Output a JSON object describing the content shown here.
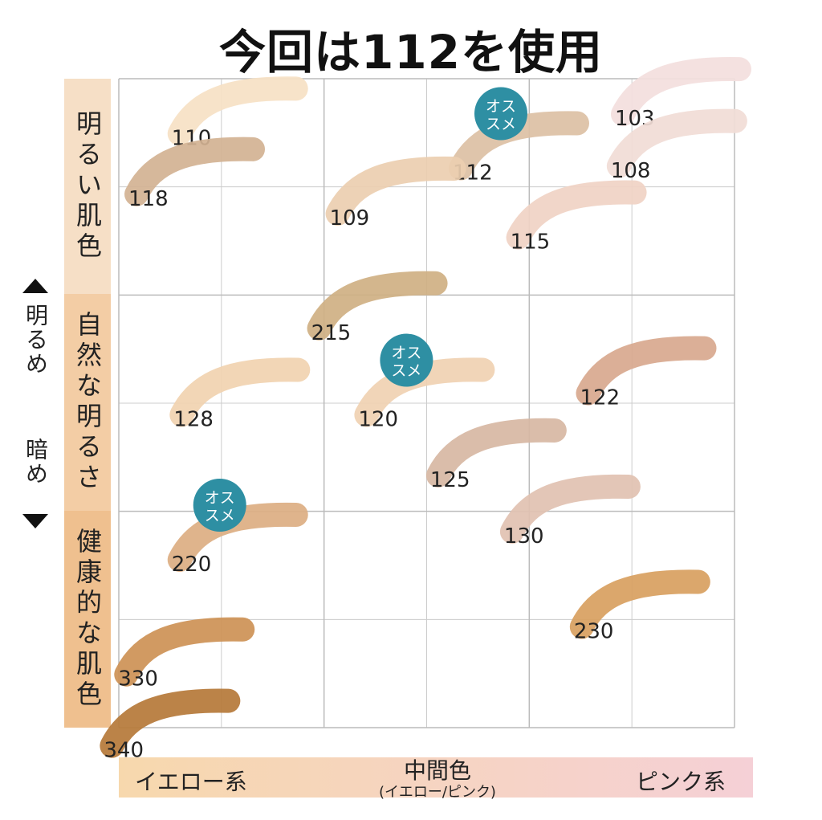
{
  "title": "今回は112を使用",
  "y_axis": {
    "up_label": "明るめ",
    "down_label": "暗め",
    "bands": [
      "明るい肌色",
      "自然な明るさ",
      "健康的な肌色"
    ]
  },
  "x_axis": {
    "left": "イエロー系",
    "middle": "中間色",
    "middle_sub": "(イエロー/ピンク)",
    "right": "ピンク系"
  },
  "colors": {
    "band_top": "#f6dfc6",
    "band_mid": "#f3cda5",
    "band_bot": "#efc08f",
    "badge": "#2e8fa3",
    "grid": "#cccccc",
    "x_band_left": "#f7d8ad",
    "x_band_right": "#f5d0d6"
  },
  "chart_data": {
    "type": "scatter",
    "title": "今回は112を使用",
    "x_categories": [
      "イエロー系",
      "中間色",
      "ピンク系"
    ],
    "y_categories": [
      "明るい肌色",
      "自然な明るさ",
      "健康的な肌色"
    ],
    "badge_text": "オススメ",
    "grid": true,
    "points": [
      {
        "label": "103",
        "x": 2.73,
        "y": 0.06,
        "color": "#f3dedd",
        "recommended": false
      },
      {
        "label": "110",
        "x": 0.57,
        "y": 0.15,
        "color": "#f6e1c4",
        "recommended": false
      },
      {
        "label": "112",
        "x": 1.94,
        "y": 0.31,
        "color": "#dcc0a4",
        "recommended": true
      },
      {
        "label": "108",
        "x": 2.71,
        "y": 0.3,
        "color": "#f1dcd6",
        "recommended": false
      },
      {
        "label": "118",
        "x": 0.36,
        "y": 0.43,
        "color": "#d2b292",
        "recommended": false
      },
      {
        "label": "109",
        "x": 1.34,
        "y": 0.52,
        "color": "#ebceb0",
        "recommended": false
      },
      {
        "label": "115",
        "x": 2.22,
        "y": 0.63,
        "color": "#f0d2c4",
        "recommended": false
      },
      {
        "label": "215",
        "x": 1.25,
        "y": 1.05,
        "color": "#cfb083",
        "recommended": false
      },
      {
        "label": "128",
        "x": 0.58,
        "y": 1.45,
        "color": "#f1d3b0",
        "recommended": false
      },
      {
        "label": "120",
        "x": 1.48,
        "y": 1.45,
        "color": "#f0d1b2",
        "recommended": true
      },
      {
        "label": "122",
        "x": 2.56,
        "y": 1.35,
        "color": "#d8a88e",
        "recommended": false
      },
      {
        "label": "125",
        "x": 1.83,
        "y": 1.73,
        "color": "#d7b7a3",
        "recommended": false
      },
      {
        "label": "130",
        "x": 2.19,
        "y": 1.99,
        "color": "#e1c1b1",
        "recommended": false
      },
      {
        "label": "220",
        "x": 0.57,
        "y": 2.12,
        "color": "#dcae82",
        "recommended": true
      },
      {
        "label": "230",
        "x": 2.53,
        "y": 2.43,
        "color": "#d8a060",
        "recommended": false
      },
      {
        "label": "330",
        "x": 0.31,
        "y": 2.65,
        "color": "#cd9155",
        "recommended": false
      },
      {
        "label": "340",
        "x": 0.24,
        "y": 2.98,
        "color": "#b57838",
        "recommended": false
      }
    ]
  }
}
